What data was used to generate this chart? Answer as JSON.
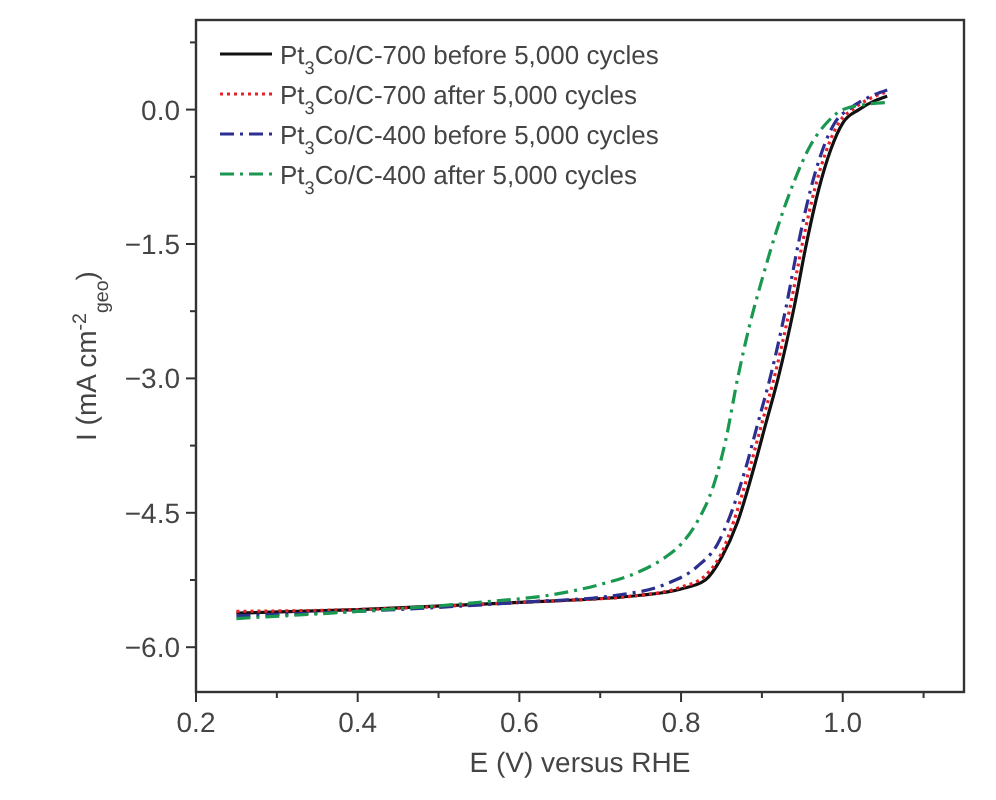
{
  "chart_data": {
    "type": "line",
    "xlabel": "E (V) versus RHE",
    "ylabel": "I (mA cm$^{-2}$$_{geo}$)",
    "xlim": [
      0.2,
      1.15
    ],
    "ylim": [
      -6.5,
      1.0
    ],
    "xticks": [
      0.2,
      {
        "value": 0.3,
        "label": null
      },
      0.4,
      {
        "value": 0.5,
        "label": null
      },
      0.6,
      {
        "value": 0.7,
        "label": null
      },
      0.8,
      {
        "value": 0.9,
        "label": null
      },
      {
        "value": 1.0,
        "label": "1.0"
      },
      {
        "value": 1.1,
        "label": null
      }
    ],
    "yticks": [
      {
        "value": -6,
        "label": "−6.0"
      },
      {
        "value": -5.25,
        "label": null
      },
      {
        "value": -4.5,
        "label": "−4.5"
      },
      {
        "value": -3.75,
        "label": null
      },
      {
        "value": -3,
        "label": "−3.0"
      },
      {
        "value": -2.25,
        "label": null
      },
      {
        "value": -1.5,
        "label": "−1.5"
      },
      {
        "value": -0.75,
        "label": null
      },
      {
        "value": 0,
        "label": "0.0"
      },
      {
        "value": 0.75,
        "label": null
      }
    ],
    "grid": false,
    "legend": "top left",
    "marker": "none",
    "series": [
      {
        "name": "Pt$_{3}$Co/C-700 before 5,000 cycles",
        "color": "#111111",
        "line_style": "solid",
        "x": [
          0.25,
          0.4,
          0.6,
          0.75,
          0.8,
          0.83,
          0.85,
          0.87,
          0.89,
          0.905,
          0.92,
          0.94,
          0.955,
          0.97,
          0.985,
          1.0,
          1.02,
          1.04,
          1.055
        ],
        "values": [
          -5.62,
          -5.58,
          -5.5,
          -5.42,
          -5.35,
          -5.25,
          -5.0,
          -4.6,
          -4.0,
          -3.5,
          -3.0,
          -2.2,
          -1.5,
          -0.9,
          -0.45,
          -0.15,
          0.0,
          0.1,
          0.15
        ]
      },
      {
        "name": "Pt$_{3}$Co/C-700 after 5,000 cycles",
        "color": "#e8202a",
        "line_style": "dotted",
        "x": [
          0.25,
          0.4,
          0.6,
          0.75,
          0.8,
          0.83,
          0.85,
          0.865,
          0.885,
          0.9,
          0.915,
          0.935,
          0.95,
          0.965,
          0.98,
          0.995,
          1.015,
          1.04,
          1.055
        ],
        "values": [
          -5.6,
          -5.58,
          -5.5,
          -5.42,
          -5.33,
          -5.2,
          -4.95,
          -4.6,
          -4.0,
          -3.5,
          -3.0,
          -2.2,
          -1.5,
          -0.9,
          -0.45,
          -0.15,
          0.02,
          0.15,
          0.2
        ]
      },
      {
        "name": "Pt$_{3}$Co/C-400 before 5,000 cycles",
        "color": "#2b2f8f",
        "line_style": "dashed",
        "x": [
          0.25,
          0.4,
          0.6,
          0.72,
          0.78,
          0.82,
          0.845,
          0.86,
          0.88,
          0.895,
          0.91,
          0.93,
          0.945,
          0.96,
          0.975,
          0.99,
          1.01,
          1.035,
          1.055
        ],
        "values": [
          -5.65,
          -5.6,
          -5.5,
          -5.42,
          -5.3,
          -5.1,
          -4.85,
          -4.55,
          -4.0,
          -3.5,
          -3.0,
          -2.2,
          -1.5,
          -0.9,
          -0.45,
          -0.15,
          0.02,
          0.15,
          0.22
        ]
      },
      {
        "name": "Pt$_{3}$Co/C-400 after 5,000 cycles",
        "color": "#1a9850",
        "line_style": "dashed",
        "x": [
          0.25,
          0.4,
          0.55,
          0.65,
          0.7,
          0.75,
          0.78,
          0.8,
          0.82,
          0.84,
          0.855,
          0.87,
          0.885,
          0.9,
          0.92,
          0.94,
          0.96,
          0.98,
          1.0,
          1.03,
          1.055
        ],
        "values": [
          -5.68,
          -5.6,
          -5.5,
          -5.4,
          -5.3,
          -5.15,
          -5.0,
          -4.85,
          -4.6,
          -4.2,
          -3.7,
          -3.0,
          -2.4,
          -1.9,
          -1.3,
          -0.8,
          -0.4,
          -0.15,
          0.0,
          0.06,
          0.08
        ]
      }
    ]
  }
}
